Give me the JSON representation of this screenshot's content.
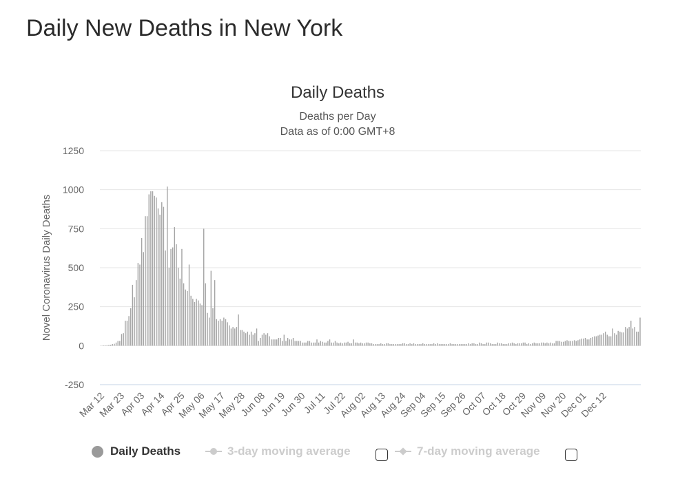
{
  "page": {
    "title": "Daily New Deaths in New York"
  },
  "legend": {
    "items": [
      {
        "label": "Daily Deaths",
        "color": "#9a9a9a",
        "active": true
      },
      {
        "label": "3-day moving average",
        "color": "#cccccc",
        "active": false
      },
      {
        "label": "7-day moving average",
        "color": "#cccccc",
        "active": false
      }
    ]
  },
  "chart_data": {
    "type": "bar",
    "title": "Daily Deaths",
    "subtitle": "Deaths per Day",
    "subtitle2": "Data as of 0:00 GMT+8",
    "ylabel": "Novel Coronavirus Daily Deaths",
    "xlabel": "",
    "ylim": [
      -250,
      1250
    ],
    "yticks": [
      1250,
      1000,
      750,
      500,
      250,
      0,
      -250
    ],
    "grid": true,
    "bar_color": "#a3a3a3",
    "x_tick_labels": [
      "Mar 12",
      "Mar 23",
      "Apr 03",
      "Apr 14",
      "Apr 25",
      "May 06",
      "May 17",
      "May 28",
      "Jun 08",
      "Jun 19",
      "Jun 30",
      "Jul 11",
      "Jul 22",
      "Aug 02",
      "Aug 13",
      "Aug 24",
      "Sep 04",
      "Sep 15",
      "Sep 26",
      "Oct 07",
      "Oct 18",
      "Oct 29",
      "Nov 09",
      "Nov 20",
      "Dec 01",
      "Dec 12"
    ],
    "x_start": "Mar 12",
    "series": [
      {
        "values": [
          1,
          2,
          3,
          5,
          6,
          10,
          12,
          20,
          30,
          30,
          75,
          80,
          160,
          160,
          190,
          240,
          390,
          310,
          420,
          530,
          520,
          690,
          600,
          830,
          830,
          970,
          990,
          990,
          960,
          950,
          880,
          840,
          920,
          890,
          610,
          1020,
          500,
          620,
          630,
          760,
          650,
          500,
          430,
          620,
          400,
          360,
          350,
          520,
          320,
          300,
          280,
          300,
          290,
          270,
          260,
          750,
          400,
          210,
          180,
          480,
          240,
          420,
          170,
          160,
          170,
          160,
          180,
          170,
          150,
          130,
          110,
          120,
          110,
          120,
          200,
          100,
          100,
          90,
          80,
          90,
          70,
          90,
          70,
          80,
          110,
          30,
          50,
          70,
          80,
          70,
          80,
          60,
          40,
          40,
          40,
          40,
          50,
          50,
          30,
          70,
          30,
          50,
          40,
          40,
          50,
          30,
          30,
          30,
          30,
          20,
          20,
          20,
          30,
          30,
          20,
          20,
          20,
          40,
          20,
          30,
          25,
          20,
          20,
          30,
          40,
          20,
          20,
          30,
          20,
          15,
          20,
          15,
          20,
          20,
          25,
          15,
          15,
          40,
          20,
          20,
          15,
          20,
          15,
          15,
          20,
          20,
          15,
          15,
          10,
          10,
          10,
          10,
          15,
          10,
          10,
          15,
          15,
          10,
          10,
          10,
          10,
          10,
          10,
          10,
          15,
          15,
          10,
          10,
          15,
          10,
          15,
          10,
          10,
          10,
          10,
          15,
          10,
          10,
          10,
          10,
          10,
          15,
          10,
          15,
          10,
          10,
          10,
          10,
          10,
          10,
          15,
          10,
          10,
          10,
          10,
          10,
          10,
          10,
          10,
          10,
          15,
          10,
          15,
          15,
          10,
          10,
          20,
          15,
          10,
          10,
          20,
          20,
          15,
          10,
          10,
          10,
          20,
          15,
          15,
          10,
          10,
          10,
          15,
          15,
          20,
          15,
          10,
          15,
          15,
          15,
          20,
          20,
          10,
          15,
          10,
          15,
          20,
          15,
          15,
          15,
          20,
          20,
          15,
          20,
          15,
          20,
          15,
          15,
          30,
          30,
          30,
          25,
          25,
          30,
          35,
          30,
          30,
          30,
          35,
          30,
          35,
          40,
          45,
          45,
          50,
          40,
          40,
          50,
          55,
          60,
          60,
          65,
          70,
          70,
          80,
          90,
          70,
          60,
          60,
          110,
          80,
          70,
          95,
          90,
          85,
          85,
          120,
          110,
          120,
          160,
          110,
          120,
          90,
          90,
          180
        ]
      }
    ]
  }
}
